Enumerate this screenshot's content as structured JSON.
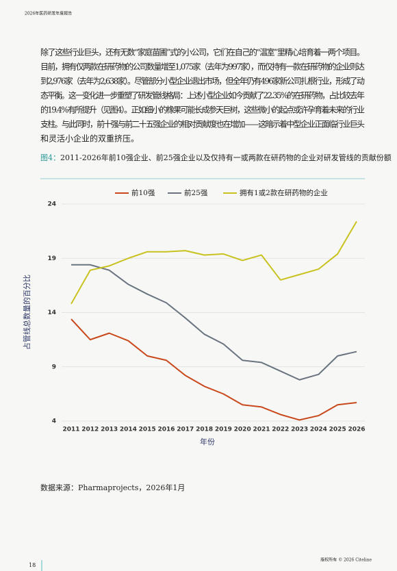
{
  "header": {
    "title": "2026年医药研发年度报告"
  },
  "paragraph": {
    "lines": [
      "除了这些行业巨头，还有无数“家庭苗圃”式的小公司，它们在自己的“温室”里精心培育着一两个项目。",
      "目前，拥有仅两款在研药物的公司数量增至1,075家（去年为997家），而仅持有一款在研药物的企业则达",
      "到2,976家（去年为2,638家）。尽管部分小型企业退出市场，但全年仍有496家新公司扎根行业，形成了动",
      "态平衡。这一变化进一步重塑了研发管线格局：上述小型企业如今贡献了22.35%的在研药物，占比较去年",
      "的19.4%有所提升（见图4）。正如细小的橡果可能长成参天巨树，这些微小的起点或许孕育着未来的行业",
      "支柱。与此同时，前十强与前二十五强企业的相对贡献度也在增加——这暗示着中型企业正面临行业巨头",
      "和灵活小企业的双重挤压。"
    ]
  },
  "figure": {
    "label": "图4：",
    "caption": "2011-2026年前10强企业、前25强企业以及仅持有一或两款在研药物的企业对研发管线的贡献份额"
  },
  "chart_data": {
    "type": "line",
    "x_label": "年份",
    "y_label": "占管线总数量的百分比",
    "categories": [
      "2011",
      "2012",
      "2013",
      "2014",
      "2015",
      "2016",
      "2017",
      "2018",
      "2019",
      "2020",
      "2021",
      "2022",
      "2023",
      "2024",
      "2025",
      "2026"
    ],
    "series": [
      {
        "name": "前10强",
        "color": "#c9481b",
        "values": [
          13.4,
          11.5,
          12.1,
          11.4,
          10.0,
          9.6,
          8.2,
          7.2,
          6.5,
          5.5,
          5.3,
          4.6,
          4.1,
          4.5,
          5.5,
          5.7
        ]
      },
      {
        "name": "前25强",
        "color": "#697480",
        "values": [
          18.4,
          18.4,
          17.9,
          16.6,
          15.7,
          14.9,
          13.5,
          12.0,
          11.1,
          9.6,
          9.4,
          8.6,
          7.8,
          8.3,
          10.0,
          10.4
        ]
      },
      {
        "name": "拥有1或2款在研药物的企业",
        "color": "#c8c21e",
        "values": [
          14.8,
          17.9,
          18.3,
          19.0,
          19.6,
          19.6,
          19.7,
          19.3,
          19.4,
          18.8,
          19.3,
          17.0,
          17.5,
          18.0,
          19.4,
          22.4
        ]
      }
    ],
    "ylim": [
      4,
      24
    ],
    "yticks": [
      4,
      9,
      14,
      19,
      24
    ],
    "grid": true
  },
  "source": "数据来源：Pharmaprojects，2026年1月",
  "footer": {
    "page": "18",
    "copyright": "版权所有 © 2026 Citeline"
  }
}
